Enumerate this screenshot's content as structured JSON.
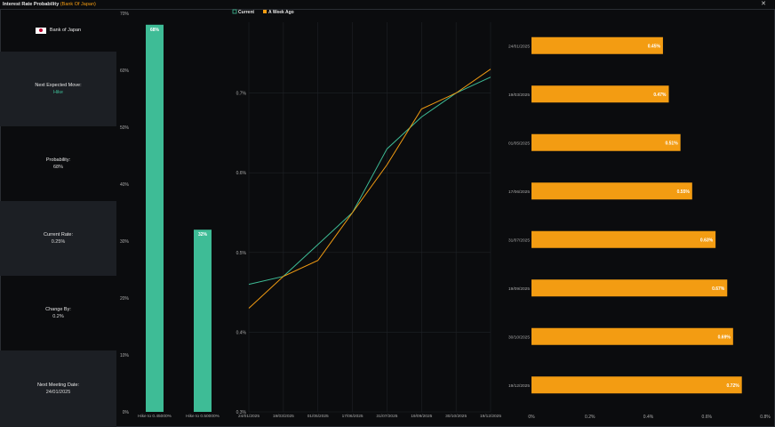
{
  "window": {
    "title": "Interest Rate Probability",
    "subtitle": "(Bank Of Japan)"
  },
  "sidebar": {
    "bank_name": "Bank of Japan",
    "next_move_label": "Next Expected Move:",
    "next_move_value": "Hike",
    "probability_label": "Probability:",
    "probability_value": "68%",
    "current_rate_label": "Current Rate:",
    "current_rate_value": "0.25%",
    "change_by_label": "Change By:",
    "change_by_value": "0.2%",
    "next_meeting_label": "Next Meeting Date:",
    "next_meeting_value": "24/01/2025"
  },
  "legend": {
    "current": "Current",
    "week_ago": "A Week Ago"
  },
  "colors": {
    "teal": "#3ebc96",
    "orange": "#f39c12",
    "background": "#0b0c0e",
    "panel": "#1c1f24"
  },
  "chart_data": [
    {
      "type": "bar",
      "categories": [
        "Hike to 0.45000%",
        "Hike to 0.50000%"
      ],
      "values": [
        68,
        32
      ],
      "data_labels": [
        "68%",
        "32%"
      ],
      "ylim": [
        0,
        70
      ],
      "yticks": [
        "0%",
        "10%",
        "20%",
        "30%",
        "40%",
        "50%",
        "60%",
        "70%"
      ]
    },
    {
      "type": "line",
      "x": [
        "24/01/2025",
        "19/03/2025",
        "01/05/2025",
        "17/06/2025",
        "31/07/2025",
        "19/09/2025",
        "30/10/2025",
        "19/12/2025"
      ],
      "series": [
        {
          "name": "Current",
          "values": [
            0.46,
            0.47,
            0.51,
            0.55,
            0.63,
            0.67,
            0.7,
            0.72
          ]
        },
        {
          "name": "A Week Ago",
          "values": [
            0.43,
            0.47,
            0.49,
            0.55,
            0.61,
            0.68,
            0.7,
            0.73
          ]
        }
      ],
      "ylim": [
        0.3,
        0.8
      ],
      "yticks": [
        "0.3%",
        "0.4%",
        "0.5%",
        "0.6%",
        "0.7%"
      ],
      "grid": true
    },
    {
      "type": "bar",
      "orientation": "horizontal",
      "categories": [
        "24/01/2025",
        "19/03/2025",
        "01/05/2025",
        "17/06/2025",
        "31/07/2025",
        "19/09/2025",
        "30/10/2025",
        "19/12/2025"
      ],
      "values": [
        0.45,
        0.47,
        0.51,
        0.55,
        0.63,
        0.67,
        0.69,
        0.72
      ],
      "data_labels": [
        "0.45%",
        "0.47%",
        "0.51%",
        "0.55%",
        "0.63%",
        "0.67%",
        "0.69%",
        "0.72%"
      ],
      "xlim": [
        0,
        0.8
      ],
      "xticks": [
        "0%",
        "0.2%",
        "0.4%",
        "0.6%",
        "0.8%"
      ]
    }
  ]
}
